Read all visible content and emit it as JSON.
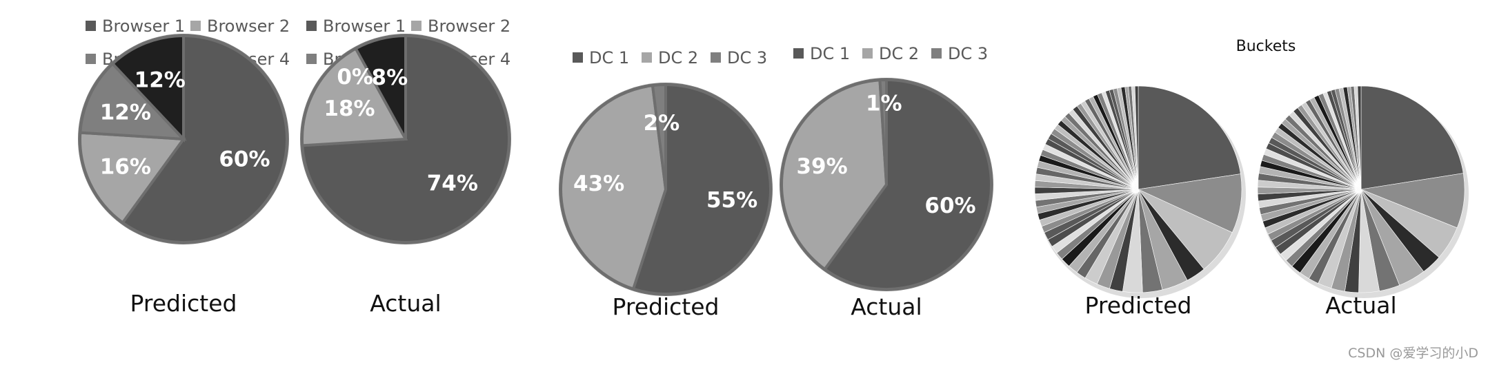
{
  "chart_data": [
    {
      "type": "pie",
      "legends": [
        {
          "entries": [
            {
              "name": "Browser 1",
              "color": "#595959"
            },
            {
              "name": "Browser 2",
              "color": "#a6a6a6"
            },
            {
              "name": "Browser 3",
              "color": "#7f7f7f"
            },
            {
              "name": "Browser 4",
              "color": "#1f1f1f"
            }
          ]
        },
        {
          "entries": [
            {
              "name": "Browser 1",
              "color": "#595959"
            },
            {
              "name": "Browser 2",
              "color": "#a6a6a6"
            },
            {
              "name": "Browser 3",
              "color": "#7f7f7f"
            },
            {
              "name": "Browser 4",
              "color": "#1f1f1f"
            }
          ]
        }
      ],
      "pies": [
        {
          "caption": "Predicted",
          "slices": [
            {
              "category": "Browser 1",
              "value": 60,
              "label": "60%",
              "color": "#595959"
            },
            {
              "category": "Browser 2",
              "value": 16,
              "label": "16%",
              "color": "#a6a6a6"
            },
            {
              "category": "Browser 3",
              "value": 12,
              "label": "12%",
              "color": "#7f7f7f"
            },
            {
              "category": "Browser 4",
              "value": 12,
              "label": "12%",
              "color": "#1f1f1f"
            }
          ]
        },
        {
          "caption": "Actual",
          "slices": [
            {
              "category": "Browser 1",
              "value": 74,
              "label": "74%",
              "color": "#595959"
            },
            {
              "category": "Browser 2",
              "value": 18,
              "label": "18%",
              "color": "#a6a6a6"
            },
            {
              "category": "Browser 3",
              "value": 0,
              "label": "0%",
              "color": "#7f7f7f"
            },
            {
              "category": "Browser 4",
              "value": 8,
              "label": "8%",
              "color": "#1f1f1f"
            }
          ]
        }
      ]
    },
    {
      "type": "pie",
      "legends": [
        {
          "entries": [
            {
              "name": "DC 1",
              "color": "#595959"
            },
            {
              "name": "DC 2",
              "color": "#a6a6a6"
            },
            {
              "name": "DC 3",
              "color": "#7f7f7f"
            }
          ]
        },
        {
          "entries": [
            {
              "name": "DC 1",
              "color": "#595959"
            },
            {
              "name": "DC 2",
              "color": "#a6a6a6"
            },
            {
              "name": "DC 3",
              "color": "#7f7f7f"
            }
          ]
        }
      ],
      "pies": [
        {
          "caption": "Predicted",
          "slices": [
            {
              "category": "DC 1",
              "value": 55,
              "label": "55%",
              "color": "#595959"
            },
            {
              "category": "DC 2",
              "value": 43,
              "label": "43%",
              "color": "#a6a6a6"
            },
            {
              "category": "DC 3",
              "value": 2,
              "label": "2%",
              "color": "#7f7f7f"
            }
          ]
        },
        {
          "caption": "Actual",
          "slices": [
            {
              "category": "DC 1",
              "value": 60,
              "label": "60%",
              "color": "#595959"
            },
            {
              "category": "DC 2",
              "value": 39,
              "label": "39%",
              "color": "#a6a6a6"
            },
            {
              "category": "DC 3",
              "value": 1,
              "label": "1%",
              "color": "#7f7f7f"
            }
          ]
        }
      ]
    },
    {
      "type": "pie",
      "title": "Buckets",
      "pies": [
        {
          "caption": "Predicted",
          "values": [
            22,
            9,
            7,
            3,
            4,
            3,
            3,
            2,
            2,
            2,
            1.5,
            1.5,
            1.5,
            1.2,
            1.2,
            1.2,
            1.2,
            1,
            1,
            1,
            1,
            1,
            1,
            1,
            1,
            1,
            1,
            1,
            0.9,
            0.9,
            0.9,
            0.9,
            0.9,
            0.9,
            0.8,
            0.8,
            0.8,
            0.8,
            0.8,
            0.8,
            0.7,
            0.7,
            0.7,
            0.7,
            0.7,
            0.7,
            0.6,
            0.6,
            0.6,
            0.6,
            0.6,
            0.6,
            0.5,
            0.5,
            0.5,
            0.5
          ]
        },
        {
          "caption": "Actual",
          "values": [
            21,
            8,
            5,
            3,
            4,
            3,
            3,
            2,
            2,
            2,
            1.5,
            1.5,
            1.5,
            1.2,
            1.2,
            1.2,
            1.2,
            1,
            1,
            1,
            1,
            1,
            1,
            1,
            1,
            1,
            1,
            1,
            0.9,
            0.9,
            0.9,
            0.9,
            0.9,
            0.9,
            0.8,
            0.8,
            0.8,
            0.8,
            0.8,
            0.8,
            0.7,
            0.7,
            0.7,
            0.7,
            0.7,
            0.7,
            0.6,
            0.6,
            0.6,
            0.6,
            0.6,
            0.6,
            0.5,
            0.5,
            0.5,
            0.5
          ]
        }
      ]
    }
  ],
  "watermark": "CSDN @爱学习的小D"
}
